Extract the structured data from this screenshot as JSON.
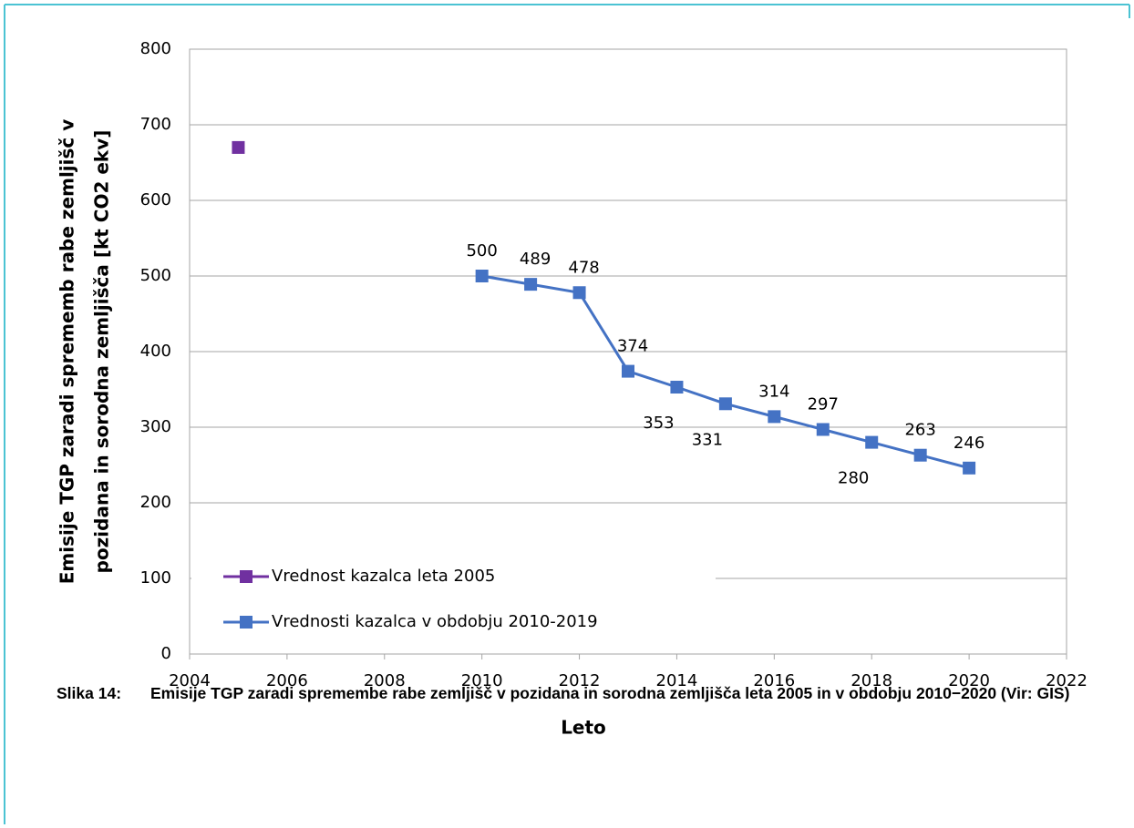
{
  "chart_data": {
    "type": "line",
    "ylabel": [
      "Emisije TGP zaradi sprememb rabe zemljišč v",
      "pozidana in sorodna zemljišča [kt CO2 ekv]"
    ],
    "xlabel": "Leto",
    "xlim": [
      2004,
      2022
    ],
    "xticks": [
      2004,
      2006,
      2008,
      2010,
      2012,
      2014,
      2016,
      2018,
      2020,
      2022
    ],
    "ylim": [
      0,
      800
    ],
    "yticks": [
      0,
      100,
      200,
      300,
      400,
      500,
      600,
      700,
      800
    ],
    "grid": true,
    "legend": "lower left",
    "series": [
      {
        "name": "Vrednost kazalca leta 2005",
        "color": "#7030a0",
        "x": [
          2005
        ],
        "values": [
          670
        ],
        "line": false
      },
      {
        "name": "Vrednosti kazalca v obdobju 2010-2019",
        "color": "#4472c4",
        "x": [
          2010,
          2011,
          2012,
          2013,
          2014,
          2015,
          2016,
          2017,
          2018,
          2019,
          2020
        ],
        "values": [
          500,
          489,
          478,
          374,
          353,
          331,
          314,
          297,
          280,
          263,
          246
        ],
        "line": true,
        "data_labels": true
      }
    ]
  },
  "caption": {
    "label": "Slika 14:",
    "text": "Emisije TGP zaradi spremembe rabe zemljišč v pozidana in sorodna zemljišča leta 2005 in v obdobju 2010−2020 (Vir: GIS)"
  }
}
